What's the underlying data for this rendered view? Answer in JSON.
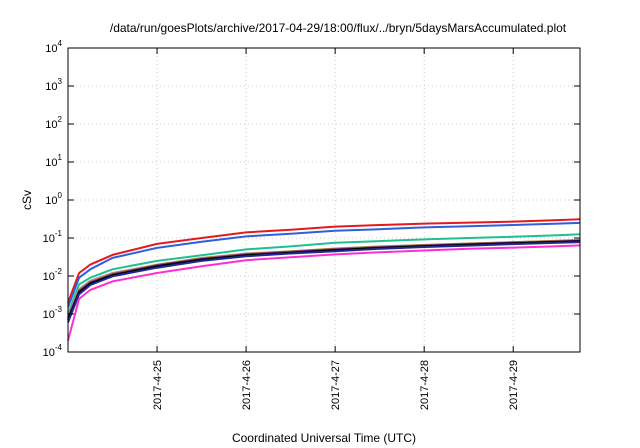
{
  "chart_data": {
    "type": "line",
    "title": "/data/run/goesPlots/archive/2017-04-29/18:00/flux/../bryn/5daysMarsAccumulated.plot",
    "xlabel": "Coordinated Universal Time (UTC)",
    "ylabel": "cSv",
    "y_scale": "log",
    "ylim": [
      0.0001,
      10000
    ],
    "xlim": [
      "2017-04-24T00:00",
      "2017-04-29T18:00"
    ],
    "x_ticks": [
      "2017-4-25",
      "2017-4-26",
      "2017-4-27",
      "2017-4-28",
      "2017-4-29"
    ],
    "y_ticks": [
      {
        "value": 0.0001,
        "base": "10",
        "exp": "-4"
      },
      {
        "value": 0.001,
        "base": "10",
        "exp": "-3"
      },
      {
        "value": 0.01,
        "base": "10",
        "exp": "-2"
      },
      {
        "value": 0.1,
        "base": "10",
        "exp": "-1"
      },
      {
        "value": 1,
        "base": "10",
        "exp": "0"
      },
      {
        "value": 10,
        "base": "10",
        "exp": "1"
      },
      {
        "value": 100,
        "base": "10",
        "exp": "2"
      },
      {
        "value": 1000,
        "base": "10",
        "exp": "3"
      },
      {
        "value": 10000,
        "base": "10",
        "exp": "4"
      }
    ],
    "grid": true,
    "legend": "none",
    "series": [
      {
        "color": "#e31a1c",
        "x": [
          "2017-04-24T00:00",
          "2017-04-24T03:00",
          "2017-04-24T06:00",
          "2017-04-24T12:00",
          "2017-04-25T00:00",
          "2017-04-25T12:00",
          "2017-04-26T00:00",
          "2017-04-26T12:00",
          "2017-04-27T00:00",
          "2017-04-27T12:00",
          "2017-04-28T00:00",
          "2017-04-28T12:00",
          "2017-04-29T00:00",
          "2017-04-29T12:00",
          "2017-04-29T18:00"
        ],
        "values": [
          0.002,
          0.012,
          0.02,
          0.036,
          0.07,
          0.1,
          0.14,
          0.165,
          0.2,
          0.22,
          0.24,
          0.255,
          0.27,
          0.295,
          0.31
        ]
      },
      {
        "color": "#2f5fe0",
        "x": [
          "2017-04-24T00:00",
          "2017-04-24T03:00",
          "2017-04-24T06:00",
          "2017-04-24T12:00",
          "2017-04-25T00:00",
          "2017-04-25T12:00",
          "2017-04-26T00:00",
          "2017-04-26T12:00",
          "2017-04-27T00:00",
          "2017-04-27T12:00",
          "2017-04-28T00:00",
          "2017-04-28T12:00",
          "2017-04-29T00:00",
          "2017-04-29T12:00",
          "2017-04-29T18:00"
        ],
        "values": [
          0.0015,
          0.009,
          0.015,
          0.03,
          0.055,
          0.08,
          0.11,
          0.13,
          0.155,
          0.17,
          0.19,
          0.205,
          0.22,
          0.24,
          0.25
        ]
      },
      {
        "color": "#1fbf8f",
        "x": [
          "2017-04-24T00:00",
          "2017-04-24T03:00",
          "2017-04-24T06:00",
          "2017-04-24T12:00",
          "2017-04-25T00:00",
          "2017-04-25T12:00",
          "2017-04-26T00:00",
          "2017-04-26T12:00",
          "2017-04-27T00:00",
          "2017-04-27T12:00",
          "2017-04-28T00:00",
          "2017-04-28T12:00",
          "2017-04-29T00:00",
          "2017-04-29T12:00",
          "2017-04-29T18:00"
        ],
        "values": [
          0.001,
          0.006,
          0.009,
          0.015,
          0.025,
          0.035,
          0.05,
          0.06,
          0.075,
          0.083,
          0.092,
          0.1,
          0.108,
          0.118,
          0.125
        ]
      },
      {
        "color": "#a0a0a0",
        "x": [
          "2017-04-24T00:00",
          "2017-04-24T03:00",
          "2017-04-24T06:00",
          "2017-04-24T12:00",
          "2017-04-25T00:00",
          "2017-04-25T12:00",
          "2017-04-26T00:00",
          "2017-04-26T12:00",
          "2017-04-27T00:00",
          "2017-04-27T12:00",
          "2017-04-28T00:00",
          "2017-04-28T12:00",
          "2017-04-29T00:00",
          "2017-04-29T12:00",
          "2017-04-29T18:00"
        ],
        "values": [
          0.0009,
          0.0045,
          0.0075,
          0.012,
          0.02,
          0.03,
          0.039,
          0.045,
          0.053,
          0.06,
          0.066,
          0.072,
          0.078,
          0.085,
          0.09
        ]
      },
      {
        "color": "#b8860b",
        "x": [
          "2017-04-24T00:00",
          "2017-04-24T03:00",
          "2017-04-24T06:00",
          "2017-04-24T12:00",
          "2017-04-25T00:00",
          "2017-04-25T12:00",
          "2017-04-26T00:00",
          "2017-04-26T12:00",
          "2017-04-27T00:00",
          "2017-04-27T12:00",
          "2017-04-28T00:00",
          "2017-04-28T12:00",
          "2017-04-29T00:00",
          "2017-04-29T12:00",
          "2017-04-29T18:00"
        ],
        "values": [
          0.0008,
          0.0042,
          0.007,
          0.0115,
          0.0195,
          0.029,
          0.038,
          0.044,
          0.052,
          0.059,
          0.065,
          0.071,
          0.077,
          0.084,
          0.088
        ]
      },
      {
        "color": "#7a1f8f",
        "x": [
          "2017-04-24T00:00",
          "2017-04-24T03:00",
          "2017-04-24T06:00",
          "2017-04-24T12:00",
          "2017-04-25T00:00",
          "2017-04-25T12:00",
          "2017-04-26T00:00",
          "2017-04-26T12:00",
          "2017-04-27T00:00",
          "2017-04-27T12:00",
          "2017-04-28T00:00",
          "2017-04-28T12:00",
          "2017-04-29T00:00",
          "2017-04-29T12:00",
          "2017-04-29T18:00"
        ],
        "values": [
          0.0008,
          0.004,
          0.0068,
          0.011,
          0.019,
          0.028,
          0.037,
          0.043,
          0.05,
          0.057,
          0.063,
          0.069,
          0.075,
          0.081,
          0.085
        ]
      },
      {
        "color": "#000000",
        "x": [
          "2017-04-24T00:00",
          "2017-04-24T03:00",
          "2017-04-24T06:00",
          "2017-04-24T12:00",
          "2017-04-25T00:00",
          "2017-04-25T12:00",
          "2017-04-26T00:00",
          "2017-04-26T12:00",
          "2017-04-27T00:00",
          "2017-04-27T12:00",
          "2017-04-28T00:00",
          "2017-04-28T12:00",
          "2017-04-29T00:00",
          "2017-04-29T12:00",
          "2017-04-29T18:00"
        ],
        "values": [
          0.0007,
          0.0037,
          0.0063,
          0.0105,
          0.018,
          0.027,
          0.035,
          0.041,
          0.048,
          0.055,
          0.061,
          0.067,
          0.073,
          0.079,
          0.082
        ]
      },
      {
        "color": "#1f2a8f",
        "x": [
          "2017-04-24T00:00",
          "2017-04-24T03:00",
          "2017-04-24T06:00",
          "2017-04-24T12:00",
          "2017-04-25T00:00",
          "2017-04-25T12:00",
          "2017-04-26T00:00",
          "2017-04-26T12:00",
          "2017-04-27T00:00",
          "2017-04-27T12:00",
          "2017-04-28T00:00",
          "2017-04-28T12:00",
          "2017-04-29T00:00",
          "2017-04-29T12:00",
          "2017-04-29T18:00"
        ],
        "values": [
          0.0006,
          0.0033,
          0.0058,
          0.0098,
          0.0165,
          0.025,
          0.033,
          0.039,
          0.045,
          0.052,
          0.058,
          0.063,
          0.069,
          0.075,
          0.078
        ]
      },
      {
        "color": "#ff2ed1",
        "x": [
          "2017-04-24T00:00",
          "2017-04-24T03:00",
          "2017-04-24T06:00",
          "2017-04-24T12:00",
          "2017-04-25T00:00",
          "2017-04-25T12:00",
          "2017-04-26T00:00",
          "2017-04-26T12:00",
          "2017-04-27T00:00",
          "2017-04-27T12:00",
          "2017-04-28T00:00",
          "2017-04-28T12:00",
          "2017-04-29T00:00",
          "2017-04-29T12:00",
          "2017-04-29T18:00"
        ],
        "values": [
          0.0002,
          0.0025,
          0.0043,
          0.0072,
          0.012,
          0.018,
          0.026,
          0.031,
          0.037,
          0.042,
          0.047,
          0.052,
          0.056,
          0.061,
          0.064
        ]
      }
    ]
  }
}
